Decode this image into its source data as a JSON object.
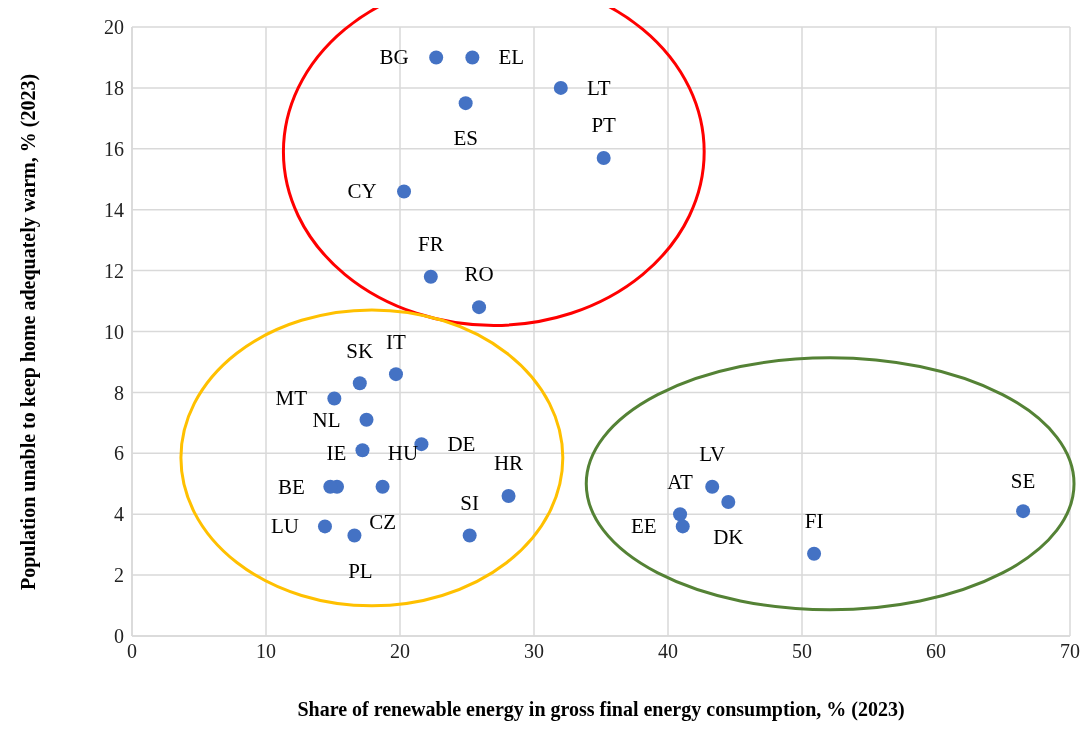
{
  "chart_data": {
    "type": "scatter",
    "xlabel": "Share of renewable energy in gross final energy consumption, % (2023)",
    "ylabel": "Population  unable to keep home adequately warm, % (2023)",
    "x": [
      22.7,
      25.4,
      32.0,
      24.9,
      35.2,
      20.3,
      22.3,
      25.9,
      17.0,
      19.7,
      15.1,
      17.5,
      17.2,
      15.3,
      21.6,
      14.8,
      18.7,
      28.1,
      14.4,
      16.6,
      25.2,
      43.3,
      44.5,
      40.9,
      41.1,
      50.9,
      66.5
    ],
    "series": [
      {
        "color": "#4472c4",
        "values": [
          19.0,
          19.0,
          18.0,
          17.5,
          15.7,
          14.6,
          11.8,
          10.8,
          8.3,
          8.6,
          7.8,
          7.1,
          6.1,
          4.9,
          6.3,
          4.9,
          4.9,
          4.6,
          3.6,
          3.3,
          3.3,
          4.9,
          4.4,
          4.0,
          3.6,
          2.7,
          4.1
        ]
      }
    ],
    "annotations": [
      {
        "text": "BG",
        "x": 22.7,
        "y": 19.0
      },
      {
        "text": "EL",
        "x": 25.4,
        "y": 19.0
      },
      {
        "text": "LT",
        "x": 32.0,
        "y": 18.0
      },
      {
        "text": "ES",
        "x": 24.9,
        "y": 17.5
      },
      {
        "text": "PT",
        "x": 35.2,
        "y": 15.7
      },
      {
        "text": "CY",
        "x": 20.3,
        "y": 14.6
      },
      {
        "text": "FR",
        "x": 22.3,
        "y": 11.8
      },
      {
        "text": "RO",
        "x": 25.9,
        "y": 10.8
      },
      {
        "text": "SK",
        "x": 17.0,
        "y": 8.3
      },
      {
        "text": "IT",
        "x": 19.7,
        "y": 8.6
      },
      {
        "text": "MT",
        "x": 15.1,
        "y": 7.8
      },
      {
        "text": "NL",
        "x": 17.5,
        "y": 7.1
      },
      {
        "text": "IE",
        "x": 17.2,
        "y": 6.1
      },
      {
        "text": "HU",
        "x": 15.3,
        "y": 4.9
      },
      {
        "text": "DE",
        "x": 21.6,
        "y": 6.3
      },
      {
        "text": "BE",
        "x": 14.8,
        "y": 4.9
      },
      {
        "text": "CZ",
        "x": 18.7,
        "y": 4.9
      },
      {
        "text": "HR",
        "x": 28.1,
        "y": 4.6
      },
      {
        "text": "LU",
        "x": 14.4,
        "y": 3.6
      },
      {
        "text": "PL",
        "x": 16.6,
        "y": 3.3
      },
      {
        "text": "SI",
        "x": 25.2,
        "y": 3.3
      },
      {
        "text": "LV",
        "x": 43.3,
        "y": 4.9
      },
      {
        "text": "DK",
        "x": 44.5,
        "y": 4.4
      },
      {
        "text": "AT",
        "x": 40.9,
        "y": 4.0
      },
      {
        "text": "EE",
        "x": 41.1,
        "y": 3.6
      },
      {
        "text": "FI",
        "x": 50.9,
        "y": 2.7
      },
      {
        "text": "SE",
        "x": 66.5,
        "y": 4.1
      }
    ],
    "xlim": [
      0,
      70
    ],
    "xticks": [
      0,
      10,
      20,
      30,
      40,
      50,
      60,
      70
    ],
    "ylim": [
      0,
      20
    ],
    "yticks": [
      0,
      2,
      4,
      6,
      8,
      10,
      12,
      14,
      16,
      18,
      20
    ],
    "grid": true,
    "marker": "circle",
    "legend": false
  }
}
